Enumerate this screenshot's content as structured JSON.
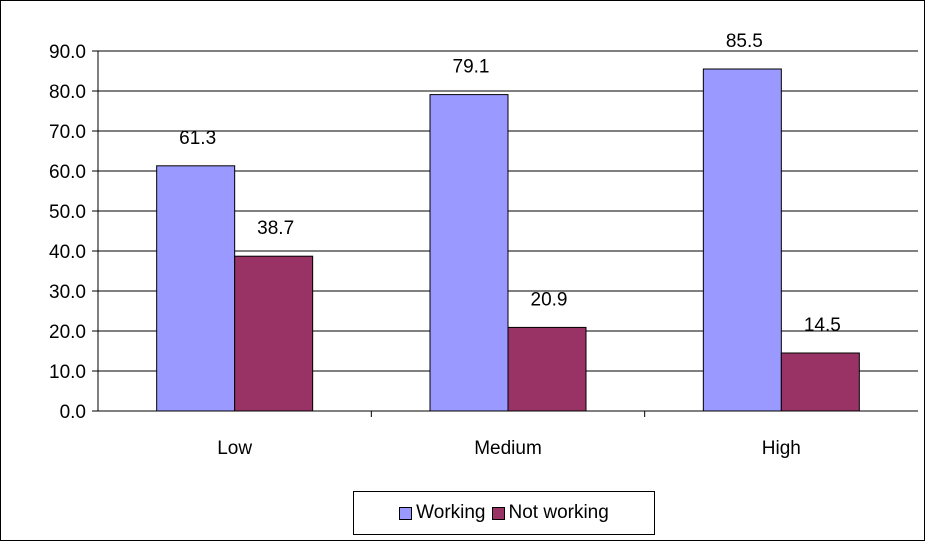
{
  "chart_data": {
    "type": "bar",
    "categories": [
      "Low",
      "Medium",
      "High"
    ],
    "series": [
      {
        "name": "Working",
        "values": [
          61.3,
          79.1,
          85.5
        ],
        "color": "#9999ff"
      },
      {
        "name": "Not working",
        "values": [
          38.7,
          20.9,
          14.5
        ],
        "color": "#993366"
      }
    ],
    "data_labels": [
      [
        "61.3",
        "79.1",
        "85.5"
      ],
      [
        "38.7",
        "20.9",
        "14.5"
      ]
    ],
    "ylim": [
      0,
      90
    ],
    "y_ticks": [
      "0.0",
      "10.0",
      "20.0",
      "30.0",
      "40.0",
      "50.0",
      "60.0",
      "70.0",
      "80.0",
      "90.0"
    ],
    "grid": true,
    "legend_position": "bottom",
    "title": "",
    "xlabel": "",
    "ylabel": ""
  }
}
